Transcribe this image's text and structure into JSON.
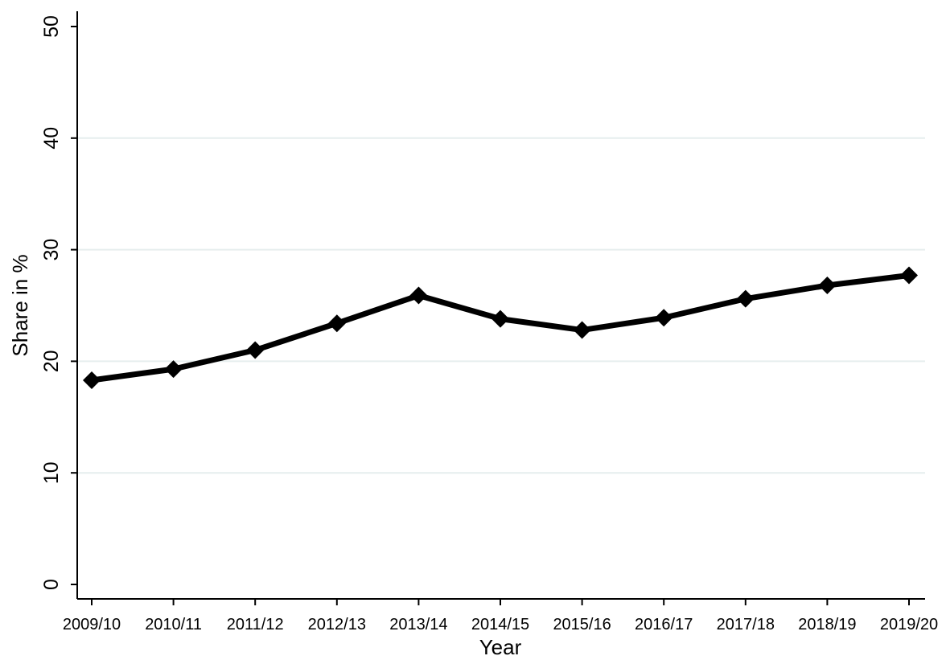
{
  "chart_data": {
    "type": "line",
    "title": "",
    "xlabel": "Year",
    "ylabel": "Share in %",
    "categories": [
      "2009/10",
      "2010/11",
      "2011/12",
      "2012/13",
      "2013/14",
      "2014/15",
      "2015/16",
      "2016/17",
      "2017/18",
      "2018/19",
      "2019/20"
    ],
    "series": [
      {
        "values": [
          18.3,
          19.3,
          21.0,
          23.4,
          25.9,
          23.8,
          22.8,
          23.9,
          25.6,
          26.8,
          27.7
        ]
      }
    ],
    "ylim": [
      0,
      50
    ],
    "yticks": [
      0,
      10,
      20,
      30,
      40,
      50
    ],
    "grid": true,
    "marker": "diamond",
    "line_color": "#000000",
    "grid_color": "#e6eeee"
  }
}
